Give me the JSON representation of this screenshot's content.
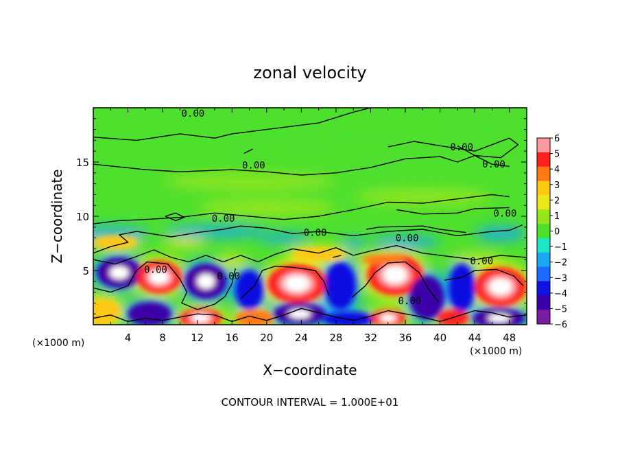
{
  "chart_data": {
    "type": "heatmap",
    "title": "zonal velocity",
    "xlabel": "X−coordinate",
    "ylabel": "Z−coordinate",
    "x_unit_label": "(×1000 m)",
    "x_unit_label_right": "(×1000 m)",
    "footer": "CONTOUR INTERVAL = 1.000E+01",
    "xlim": [
      0,
      50
    ],
    "ylim": [
      0,
      20
    ],
    "x_ticks": [
      "4",
      "8",
      "12",
      "16",
      "20",
      "24",
      "28",
      "32",
      "36",
      "40",
      "44",
      "48"
    ],
    "y_ticks": [
      "5",
      "10",
      "15"
    ],
    "colorbar": {
      "min": -6,
      "max": 6,
      "ticks": [
        "6",
        "5",
        "4",
        "3",
        "2",
        "1",
        "0",
        "−1",
        "−2",
        "−3",
        "−4",
        "−5",
        "−6"
      ]
    },
    "contour_labels": [
      {
        "text": "0.00",
        "x": 11.5,
        "z": 19.5
      },
      {
        "text": "0.00",
        "x": 42.5,
        "z": 16.4
      },
      {
        "text": "0.00",
        "x": 18.5,
        "z": 14.7
      },
      {
        "text": "0.00",
        "x": 46.2,
        "z": 14.8
      },
      {
        "text": "0.00",
        "x": 47.5,
        "z": 10.3
      },
      {
        "text": "0.00",
        "x": 15.0,
        "z": 9.8
      },
      {
        "text": "0.00",
        "x": 25.6,
        "z": 8.5
      },
      {
        "text": "0.00",
        "x": 36.2,
        "z": 8.0
      },
      {
        "text": "0.00",
        "x": 44.8,
        "z": 5.9
      },
      {
        "text": "0.00",
        "x": 7.2,
        "z": 5.1
      },
      {
        "text": "0.00",
        "x": 15.6,
        "z": 4.5
      },
      {
        "text": "0.00",
        "x": 36.5,
        "z": 2.2
      }
    ],
    "anomalies": [
      {
        "x": 3.0,
        "z": 4.8,
        "rx": 2.6,
        "rz": 1.4,
        "value": -7
      },
      {
        "x": 7.6,
        "z": 4.4,
        "rx": 2.6,
        "rz": 1.5,
        "value": 7
      },
      {
        "x": 13.0,
        "z": 4.0,
        "rx": 2.4,
        "rz": 1.6,
        "value": -7
      },
      {
        "x": 18.0,
        "z": 3.2,
        "rx": 1.6,
        "rz": 1.8,
        "value": -3.5
      },
      {
        "x": 23.5,
        "z": 3.8,
        "rx": 3.4,
        "rz": 1.8,
        "value": 7
      },
      {
        "x": 28.5,
        "z": 3.6,
        "rx": 1.8,
        "rz": 2.2,
        "value": -4
      },
      {
        "x": 34.8,
        "z": 4.6,
        "rx": 3.2,
        "rz": 1.9,
        "value": 7
      },
      {
        "x": 38.5,
        "z": 2.5,
        "rx": 2.0,
        "rz": 2.0,
        "value": -5
      },
      {
        "x": 42.5,
        "z": 3.4,
        "rx": 1.5,
        "rz": 2.2,
        "value": -4
      },
      {
        "x": 47.0,
        "z": 3.5,
        "rx": 3.0,
        "rz": 1.8,
        "value": 7
      },
      {
        "x": 1.0,
        "z": 1.2,
        "rx": 2.0,
        "rz": 1.2,
        "value": 3
      },
      {
        "x": 6.5,
        "z": 1.0,
        "rx": 2.5,
        "rz": 1.1,
        "value": -5
      },
      {
        "x": 12.4,
        "z": 0.6,
        "rx": 2.4,
        "rz": 0.9,
        "value": 7
      },
      {
        "x": 18.6,
        "z": 0.6,
        "rx": 2.2,
        "rz": 0.8,
        "value": 4
      },
      {
        "x": 23.8,
        "z": 1.0,
        "rx": 3.0,
        "rz": 1.0,
        "value": -7
      },
      {
        "x": 29.5,
        "z": 0.5,
        "rx": 3.0,
        "rz": 0.7,
        "value": -4
      },
      {
        "x": 34.0,
        "z": 0.6,
        "rx": 2.0,
        "rz": 0.8,
        "value": 7
      },
      {
        "x": 41.5,
        "z": 0.6,
        "rx": 1.8,
        "rz": 0.8,
        "value": 5
      },
      {
        "x": 46.8,
        "z": 0.6,
        "rx": 3.0,
        "rz": 0.9,
        "value": -7
      },
      {
        "x": 2.5,
        "z": 7.6,
        "rx": 2.5,
        "rz": 0.6,
        "value": 3.5
      },
      {
        "x": 10.5,
        "z": 7.6,
        "rx": 2.5,
        "rz": 0.5,
        "value": 2.5
      },
      {
        "x": 26.0,
        "z": 6.5,
        "rx": 3.0,
        "rz": 0.6,
        "value": 3.5
      },
      {
        "x": 33.5,
        "z": 6.0,
        "rx": 2.5,
        "rz": 0.5,
        "value": 4
      },
      {
        "x": 44.0,
        "z": 6.0,
        "rx": 3.0,
        "rz": 0.5,
        "value": 2.5
      },
      {
        "x": 16.0,
        "z": 5.8,
        "rx": 2.0,
        "rz": 0.6,
        "value": 2.5
      },
      {
        "x": 30.0,
        "z": 7.5,
        "rx": 1.5,
        "rz": 0.5,
        "value": -2
      },
      {
        "x": 2.0,
        "z": 8.4,
        "rx": 4.5,
        "rz": 0.7,
        "value": -2.4
      },
      {
        "x": 14.0,
        "z": 8.6,
        "rx": 6.0,
        "rz": 0.6,
        "value": -2.2
      },
      {
        "x": 22.0,
        "z": 8.0,
        "rx": 3.0,
        "rz": 0.5,
        "value": -1.8
      },
      {
        "x": 36.0,
        "z": 7.6,
        "rx": 4.0,
        "rz": 0.6,
        "value": -1.6
      },
      {
        "x": 47.0,
        "z": 8.4,
        "rx": 3.0,
        "rz": 0.7,
        "value": -1.6
      },
      {
        "x": 20.0,
        "z": 10.8,
        "rx": 8.0,
        "rz": 0.9,
        "value": 1.2
      },
      {
        "x": 38.0,
        "z": 11.8,
        "rx": 8.0,
        "rz": 0.8,
        "value": 0.9
      },
      {
        "x": 18.0,
        "z": 13.2,
        "rx": 10.0,
        "rz": 0.8,
        "value": 0.6
      },
      {
        "x": 25.0,
        "z": 17.5,
        "rx": 12.0,
        "rz": 1.2,
        "value": 0.35
      },
      {
        "x": 44.0,
        "z": 18.0,
        "rx": 6.0,
        "rz": 1.2,
        "value": -0.4
      }
    ],
    "contours": [
      [
        [
          0,
          17.3
        ],
        [
          5,
          17.0
        ],
        [
          10,
          17.6
        ],
        [
          14,
          17.2
        ],
        [
          16,
          17.6
        ],
        [
          20,
          18.0
        ],
        [
          26,
          18.6
        ],
        [
          30,
          19.6
        ],
        [
          32,
          20
        ]
      ],
      [
        [
          34,
          16.4
        ],
        [
          37,
          16.9
        ],
        [
          40,
          16.5
        ],
        [
          44,
          16.0
        ],
        [
          48,
          17.2
        ],
        [
          49,
          16.6
        ],
        [
          47,
          15.4
        ],
        [
          44,
          15.6
        ],
        [
          42,
          16.5
        ]
      ],
      [
        [
          0,
          14.8
        ],
        [
          6,
          14.3
        ],
        [
          10,
          14.1
        ],
        [
          16,
          14.3
        ],
        [
          20,
          14.1
        ],
        [
          24,
          13.8
        ],
        [
          28,
          14.0
        ],
        [
          32,
          14.5
        ],
        [
          36,
          15.3
        ],
        [
          40,
          15.5
        ],
        [
          42,
          15.0
        ],
        [
          44,
          15.6
        ],
        [
          46,
          14.8
        ],
        [
          48,
          14.6
        ]
      ],
      [
        [
          17.4,
          15.8
        ],
        [
          18.4,
          16.2
        ]
      ],
      [
        [
          0,
          9.3
        ],
        [
          3,
          9.6
        ],
        [
          6,
          9.7
        ],
        [
          10,
          9.9
        ],
        [
          14,
          10.3
        ],
        [
          18,
          10.0
        ],
        [
          22,
          9.7
        ],
        [
          26,
          10.0
        ],
        [
          30,
          10.6
        ],
        [
          34,
          11.3
        ],
        [
          38,
          11.2
        ],
        [
          42,
          11.6
        ],
        [
          46,
          12.0
        ],
        [
          48,
          11.8
        ]
      ],
      [
        [
          35,
          10.6
        ],
        [
          38,
          10.2
        ],
        [
          42,
          10.3
        ],
        [
          44,
          10.7
        ],
        [
          48,
          10.8
        ]
      ],
      [
        [
          0,
          6.6
        ],
        [
          2,
          7.2
        ],
        [
          4,
          7.6
        ],
        [
          3,
          8.3
        ],
        [
          5,
          8.6
        ],
        [
          9,
          8.1
        ],
        [
          12,
          8.5
        ],
        [
          15,
          8.8
        ],
        [
          17,
          9.1
        ],
        [
          20,
          8.9
        ],
        [
          23,
          8.4
        ],
        [
          26,
          8.6
        ],
        [
          30,
          8.2
        ],
        [
          34,
          8.6
        ],
        [
          38,
          8.8
        ],
        [
          42,
          8.2
        ],
        [
          46,
          8.6
        ],
        [
          48,
          8.7
        ],
        [
          49.5,
          9.2
        ]
      ],
      [
        [
          31.5,
          8.8
        ],
        [
          33,
          9.0
        ],
        [
          38,
          9.1
        ],
        [
          40,
          8.8
        ],
        [
          43,
          8.5
        ]
      ],
      [
        [
          8.3,
          10.0
        ],
        [
          9.5,
          10.3
        ],
        [
          10.5,
          9.9
        ],
        [
          9.5,
          9.6
        ],
        [
          8.3,
          10.0
        ]
      ],
      [
        [
          0,
          6.0
        ],
        [
          2.5,
          5.6
        ],
        [
          5,
          6.3
        ],
        [
          7,
          6.9
        ],
        [
          9,
          6.2
        ],
        [
          11,
          5.8
        ],
        [
          13,
          6.4
        ],
        [
          15,
          5.8
        ],
        [
          17,
          6.4
        ],
        [
          19,
          5.8
        ],
        [
          21,
          6.5
        ],
        [
          23,
          7.0
        ],
        [
          26,
          6.6
        ],
        [
          28,
          7.1
        ],
        [
          30,
          6.4
        ],
        [
          32,
          6.8
        ],
        [
          35,
          7.3
        ],
        [
          38,
          6.6
        ],
        [
          41,
          6.3
        ],
        [
          44,
          6.0
        ],
        [
          47,
          6.4
        ],
        [
          50,
          6.2
        ]
      ],
      [
        [
          0,
          3.4
        ],
        [
          2,
          3.0
        ],
        [
          4,
          3.6
        ],
        [
          5,
          5.0
        ],
        [
          6.2,
          5.8
        ],
        [
          8.6,
          5.6
        ],
        [
          10,
          4.2
        ],
        [
          10.8,
          3.0
        ],
        [
          10.2,
          2.0
        ],
        [
          12,
          1.4
        ],
        [
          14,
          1.9
        ],
        [
          15.2,
          2.6
        ],
        [
          16,
          3.8
        ],
        [
          16.4,
          5.2
        ]
      ],
      [
        [
          17,
          2.4
        ],
        [
          18.6,
          3.6
        ],
        [
          19.5,
          5.0
        ],
        [
          21,
          5.4
        ],
        [
          23,
          5.3
        ],
        [
          25.6,
          5.0
        ],
        [
          26.6,
          4.0
        ],
        [
          27.2,
          2.7
        ]
      ],
      [
        [
          29.8,
          2.5
        ],
        [
          31.4,
          3.6
        ],
        [
          32.5,
          4.8
        ],
        [
          34,
          5.7
        ],
        [
          36,
          5.8
        ],
        [
          37.6,
          4.8
        ],
        [
          38.6,
          3.4
        ],
        [
          39.8,
          2.1
        ]
      ],
      [
        [
          40.5,
          4.1
        ],
        [
          42.6,
          4.4
        ],
        [
          44,
          5.0
        ],
        [
          46.5,
          5.1
        ],
        [
          48.5,
          4.5
        ],
        [
          49.6,
          3.6
        ]
      ],
      [
        [
          0,
          0.6
        ],
        [
          2,
          0.9
        ],
        [
          4,
          0.3
        ],
        [
          6,
          0.6
        ],
        [
          8,
          0.4
        ],
        [
          10,
          0.7
        ],
        [
          12,
          1.0
        ],
        [
          14,
          0.9
        ],
        [
          16,
          0.3
        ],
        [
          18,
          0.8
        ],
        [
          20,
          0.4
        ],
        [
          22,
          0.9
        ],
        [
          24,
          1.5
        ],
        [
          26,
          1.1
        ],
        [
          28,
          0.7
        ],
        [
          30,
          0.4
        ],
        [
          32,
          0.8
        ],
        [
          34,
          1.3
        ],
        [
          36,
          1.0
        ],
        [
          38,
          0.7
        ],
        [
          40,
          0.3
        ],
        [
          42,
          0.8
        ],
        [
          44,
          1.3
        ],
        [
          46,
          1.1
        ],
        [
          48,
          0.7
        ],
        [
          50,
          0.9
        ]
      ],
      [
        [
          27.6,
          6.2
        ],
        [
          28.6,
          6.4
        ]
      ]
    ]
  }
}
